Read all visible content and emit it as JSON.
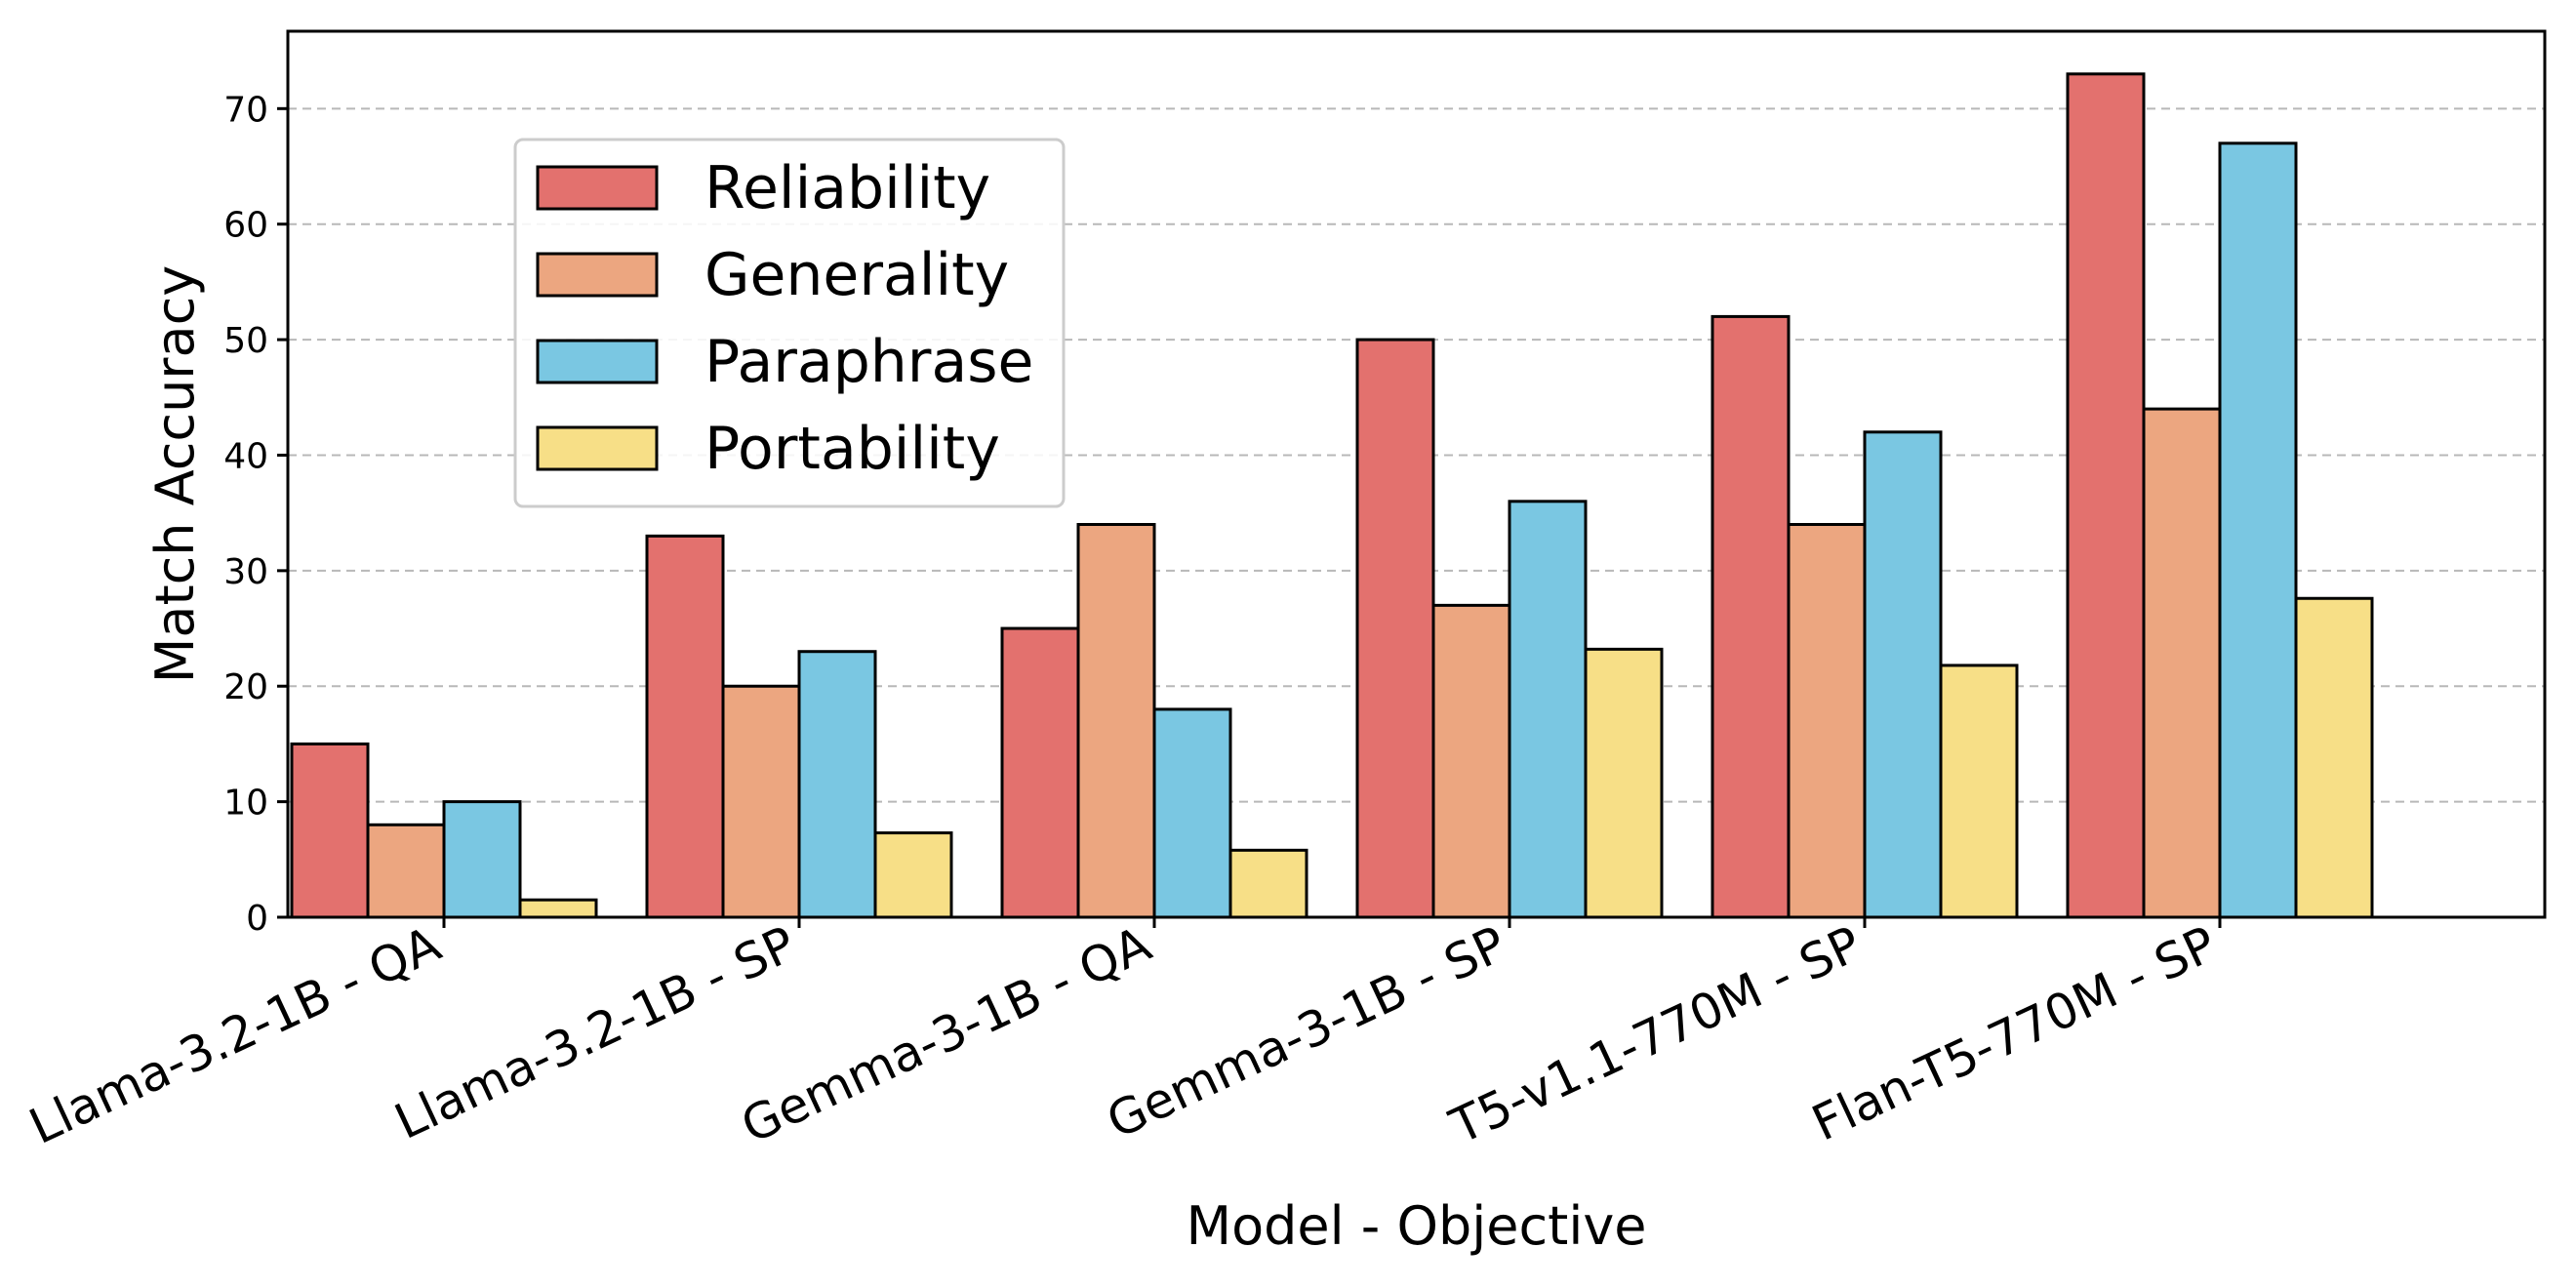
{
  "chart_data": {
    "type": "bar",
    "title": "",
    "xlabel": "Model - Objective",
    "ylabel": "Match Accuracy",
    "categories": [
      "Llama-3.2-1B - QA",
      "Llama-3.2-1B - SP",
      "Gemma-3-1B - QA",
      "Gemma-3-1B - SP",
      "T5-v1.1-770M - SP",
      "Flan-T5-770M - SP"
    ],
    "series": [
      {
        "name": "Reliability",
        "color": "#e3716e",
        "values": [
          15,
          33,
          25,
          50,
          52,
          73
        ]
      },
      {
        "name": "Generality",
        "color": "#eca680",
        "values": [
          8,
          20,
          34,
          27,
          34,
          44
        ]
      },
      {
        "name": "Paraphrase",
        "color": "#7ac7e2",
        "values": [
          10,
          23,
          18,
          36,
          42,
          67
        ]
      },
      {
        "name": "Portability",
        "color": "#f7df87",
        "values": [
          1.5,
          7.3,
          5.8,
          23.2,
          21.8,
          27.6
        ]
      }
    ],
    "ylim": [
      0,
      76.7
    ],
    "yticks": [
      0,
      10,
      20,
      30,
      40,
      50,
      60,
      70
    ],
    "grid": "y-dashed",
    "legend": "upper-left"
  }
}
